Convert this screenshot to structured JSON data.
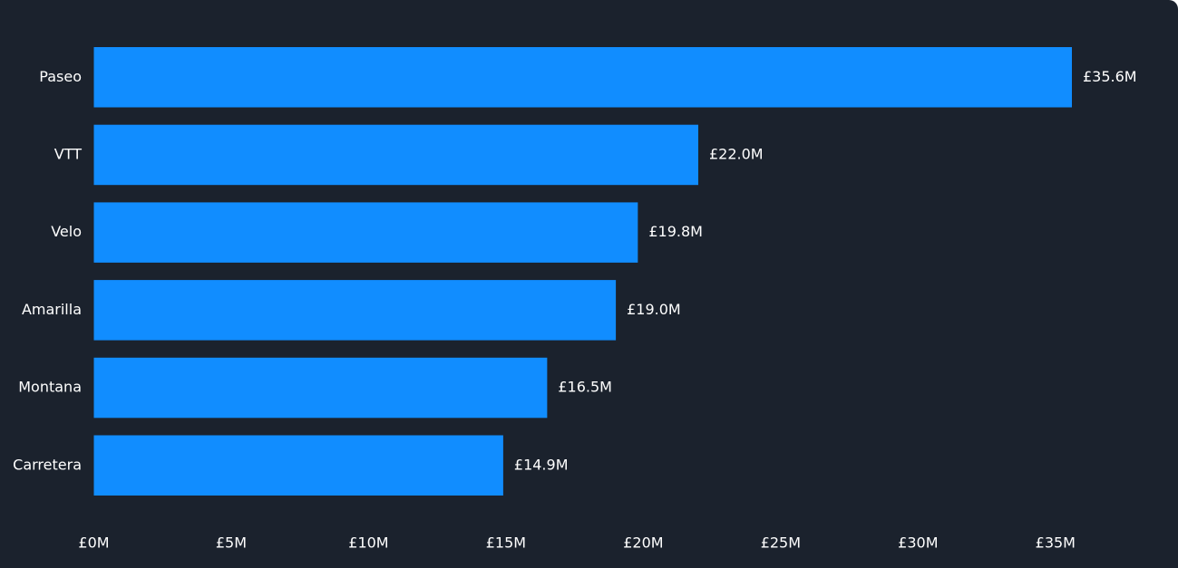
{
  "chart_data": {
    "type": "bar",
    "orientation": "horizontal",
    "categories": [
      "Paseo",
      "VTT",
      "Velo",
      "Amarilla",
      "Montana",
      "Carretera"
    ],
    "values": [
      35.6,
      22.0,
      19.8,
      19.0,
      16.5,
      14.9
    ],
    "value_labels": [
      "£35.6M",
      "£22.0M",
      "£19.8M",
      "£19.0M",
      "£16.5M",
      "£14.9M"
    ],
    "value_unit": "£M",
    "xlim": [
      0,
      35.6
    ],
    "x_ticks": [
      0,
      5,
      10,
      15,
      20,
      25,
      30,
      35
    ],
    "x_tick_labels": [
      "£0M",
      "£5M",
      "£10M",
      "£15M",
      "£20M",
      "£25M",
      "£30M",
      "£35M"
    ],
    "title": "",
    "xlabel": "",
    "ylabel": "",
    "grid": false,
    "bar_color": "#118dff",
    "background_color": "#1b222d",
    "text_color": "#ffffff"
  }
}
